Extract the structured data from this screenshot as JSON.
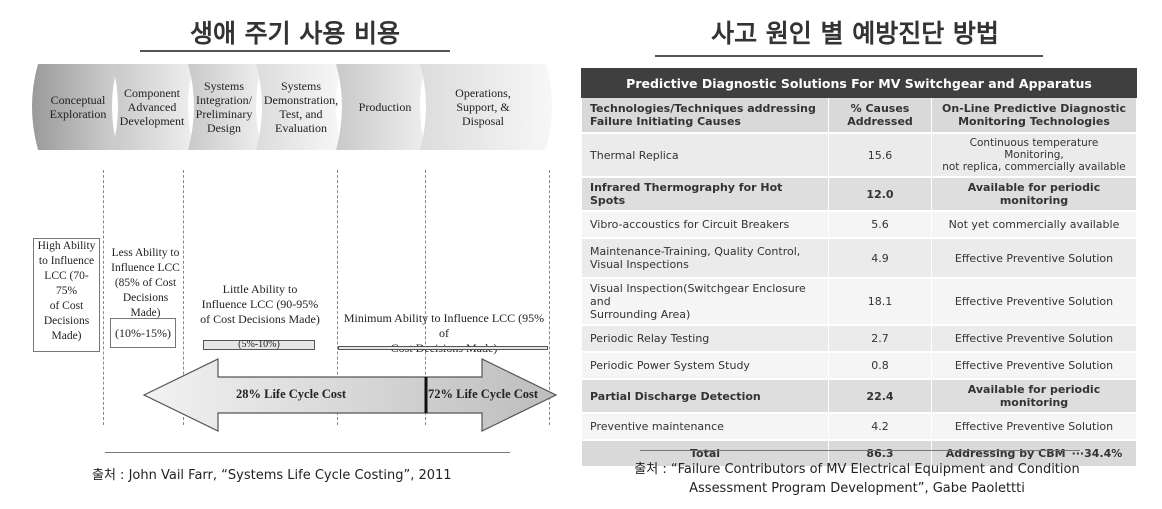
{
  "left": {
    "heading": "생애 주기 사용 비용",
    "stages": [
      "Conceptual\nExploration",
      "Component\nAdvanced\nDevelopment",
      "Systems\nIntegration/\nPreliminary\nDesign",
      "Systems\nDemonstration,\nTest, and\nEvaluation",
      "Production",
      "Operations,\nSupport, &\nDisposal"
    ],
    "high_ability": "High Ability\nto Influence\nLCC (70-75%\nof Cost\nDecisions\nMade)",
    "less_ability": "Less Ability to\nInfluence LCC\n(85% of Cost\nDecisions Made)",
    "less_range": "(10%-15%)",
    "little_ability": "Little Ability to\nInfluence LCC (90-95%\nof Cost Decisions Made)",
    "little_range": "(5%-10%)",
    "minimum_ability": "Minimum Ability to Influence LCC (95% of\nCost Decisions Made)",
    "arrow_left": "28% Life Cycle Cost",
    "arrow_right": "72% Life Cycle Cost",
    "source": "출처 : John Vail Farr, “Systems Life Cycle Costing”, 2011"
  },
  "right": {
    "heading": "사고 원인 별 예방진단 방법",
    "table_title": "Predictive Diagnostic Solutions For MV Switchgear and Apparatus",
    "columns": [
      "Technologies/Techniques addressing\nFailure Initiating Causes",
      "% Causes\nAddressed",
      "On-Line Predictive Diagnostic\nMonitoring Technologies"
    ],
    "rows": [
      {
        "tech": "Thermal Replica",
        "pct": "15.6",
        "solution": "Continuous temperature Monitoring,\nnot replica, commercially available"
      },
      {
        "tech": "Infrared Thermography for Hot Spots",
        "pct": "12.0",
        "solution": "Available for periodic monitoring"
      },
      {
        "tech": "Vibro-accoustics for Circuit Breakers",
        "pct": "5.6",
        "solution": "Not yet commercially available"
      },
      {
        "tech": "Maintenance-Training, Quality Control,\nVisual Inspections",
        "pct": "4.9",
        "solution": "Effective Preventive Solution"
      },
      {
        "tech": "Visual Inspection(Switchgear Enclosure and\nSurrounding Area)",
        "pct": "18.1",
        "solution": "Effective Preventive Solution"
      },
      {
        "tech": "Periodic Relay Testing",
        "pct": "2.7",
        "solution": "Effective Preventive Solution"
      },
      {
        "tech": "Periodic Power System Study",
        "pct": "0.8",
        "solution": "Effective Preventive Solution"
      },
      {
        "tech": "Partial Discharge Detection",
        "pct": "22.4",
        "solution": "Available for periodic monitoring"
      },
      {
        "tech": "Preventive maintenance",
        "pct": "4.2",
        "solution": "Effective Preventive Solution"
      }
    ],
    "total": {
      "label": "Total",
      "pct": "86.3",
      "solution": "Addressing by CBM  ···34.4%"
    },
    "source": "출처 : “Failure Contributors of MV Electrical Equipment and Condition\nAssessment Program Development”, Gabe Paolettti"
  }
}
